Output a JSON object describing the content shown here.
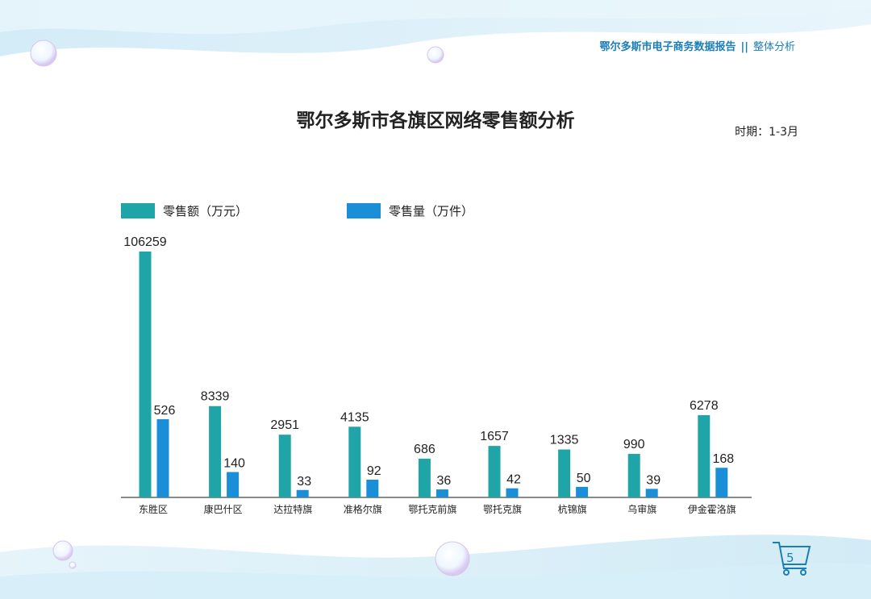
{
  "header": {
    "title": "鄂尔多斯市电子商务数据报告",
    "separator": "||",
    "section": "整体分析"
  },
  "period": "时期：1-3月",
  "page_number": "5",
  "colors": {
    "retail_sales": "#1fa5a8",
    "retail_volume": "#1b8ed8",
    "header_accent": "#1a7fb8"
  },
  "chart_data": {
    "type": "bar",
    "title": "鄂尔多斯市各旗区网络零售额分析",
    "categories": [
      "东胜区",
      "康巴什区",
      "达拉特旗",
      "准格尔旗",
      "鄂托克前旗",
      "鄂托克旗",
      "杭锦旗",
      "乌审旗",
      "伊金霍洛旗"
    ],
    "series": [
      {
        "name": "零售额（万元）",
        "values": [
          106259,
          8339,
          2951,
          4135,
          686,
          1657,
          1335,
          990,
          6278
        ]
      },
      {
        "name": "零售量（万件）",
        "values": [
          526,
          140,
          33,
          92,
          36,
          42,
          50,
          39,
          168
        ]
      }
    ],
    "xlabel": "",
    "ylabel": "",
    "legend_position": "top-left",
    "grid": false
  }
}
